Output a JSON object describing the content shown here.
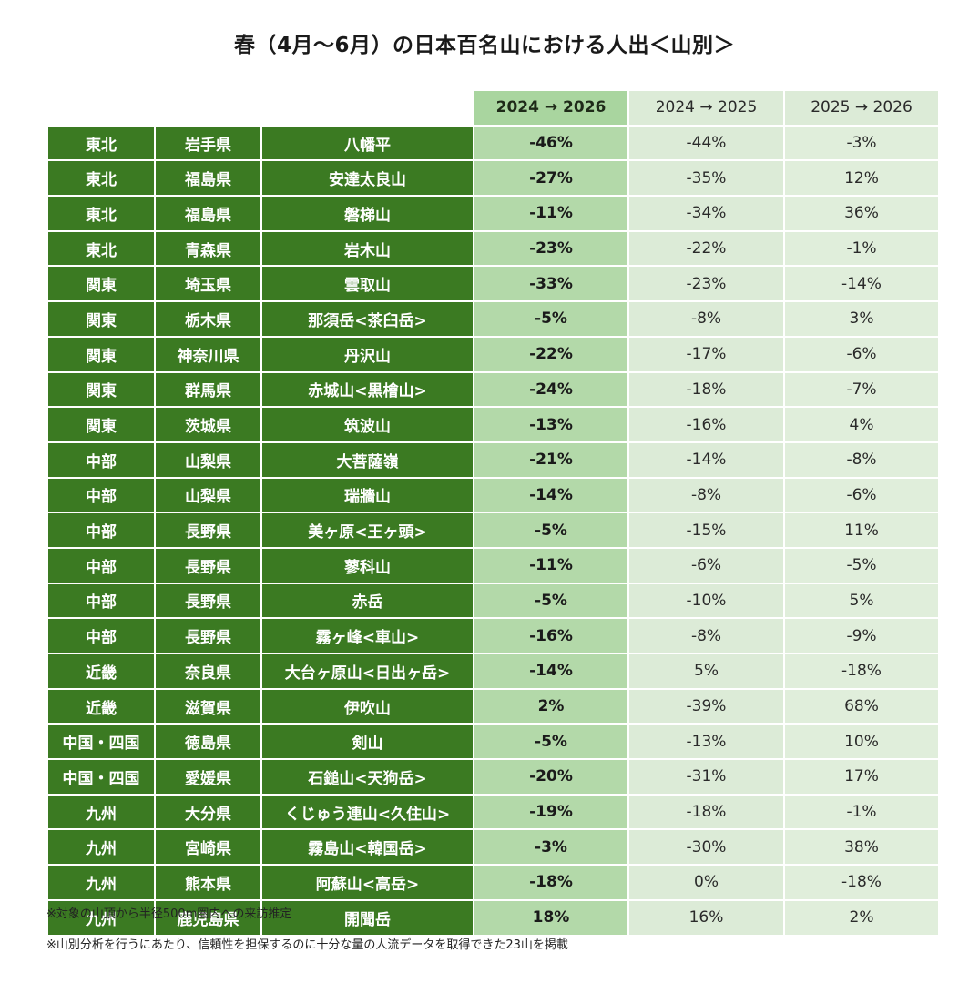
{
  "title": "春（4月〜6月）の日本百名山における人出＜山別＞",
  "headers": {
    "col_main": "2024 → 2026",
    "col_a": "2024 → 2025",
    "col_b": "2025 → 2026"
  },
  "rows": [
    {
      "region": "東北",
      "pref": "岩手県",
      "mountain": "八幡平",
      "v1": "-46%",
      "v2": "-44%",
      "v3": "-3%"
    },
    {
      "region": "東北",
      "pref": "福島県",
      "mountain": "安達太良山",
      "v1": "-27%",
      "v2": "-35%",
      "v3": "12%"
    },
    {
      "region": "東北",
      "pref": "福島県",
      "mountain": "磐梯山",
      "v1": "-11%",
      "v2": "-34%",
      "v3": "36%"
    },
    {
      "region": "東北",
      "pref": "青森県",
      "mountain": "岩木山",
      "v1": "-23%",
      "v2": "-22%",
      "v3": "-1%"
    },
    {
      "region": "関東",
      "pref": "埼玉県",
      "mountain": "雲取山",
      "v1": "-33%",
      "v2": "-23%",
      "v3": "-14%"
    },
    {
      "region": "関東",
      "pref": "栃木県",
      "mountain": "那須岳<茶臼岳>",
      "v1": "-5%",
      "v2": "-8%",
      "v3": "3%"
    },
    {
      "region": "関東",
      "pref": "神奈川県",
      "mountain": "丹沢山",
      "v1": "-22%",
      "v2": "-17%",
      "v3": "-6%"
    },
    {
      "region": "関東",
      "pref": "群馬県",
      "mountain": "赤城山<黒檜山>",
      "v1": "-24%",
      "v2": "-18%",
      "v3": "-7%"
    },
    {
      "region": "関東",
      "pref": "茨城県",
      "mountain": "筑波山",
      "v1": "-13%",
      "v2": "-16%",
      "v3": "4%"
    },
    {
      "region": "中部",
      "pref": "山梨県",
      "mountain": "大菩薩嶺",
      "v1": "-21%",
      "v2": "-14%",
      "v3": "-8%"
    },
    {
      "region": "中部",
      "pref": "山梨県",
      "mountain": "瑞牆山",
      "v1": "-14%",
      "v2": "-8%",
      "v3": "-6%"
    },
    {
      "region": "中部",
      "pref": "長野県",
      "mountain": "美ヶ原<王ヶ頭>",
      "v1": "-5%",
      "v2": "-15%",
      "v3": "11%"
    },
    {
      "region": "中部",
      "pref": "長野県",
      "mountain": "蓼科山",
      "v1": "-11%",
      "v2": "-6%",
      "v3": "-5%"
    },
    {
      "region": "中部",
      "pref": "長野県",
      "mountain": "赤岳",
      "v1": "-5%",
      "v2": "-10%",
      "v3": "5%"
    },
    {
      "region": "中部",
      "pref": "長野県",
      "mountain": "霧ヶ峰<車山>",
      "v1": "-16%",
      "v2": "-8%",
      "v3": "-9%"
    },
    {
      "region": "近畿",
      "pref": "奈良県",
      "mountain": "大台ヶ原山<日出ヶ岳>",
      "v1": "-14%",
      "v2": "5%",
      "v3": "-18%"
    },
    {
      "region": "近畿",
      "pref": "滋賀県",
      "mountain": "伊吹山",
      "v1": "2%",
      "v2": "-39%",
      "v3": "68%"
    },
    {
      "region": "中国・四国",
      "pref": "徳島県",
      "mountain": "剣山",
      "v1": "-5%",
      "v2": "-13%",
      "v3": "10%"
    },
    {
      "region": "中国・四国",
      "pref": "愛媛県",
      "mountain": "石鎚山<天狗岳>",
      "v1": "-20%",
      "v2": "-31%",
      "v3": "17%"
    },
    {
      "region": "九州",
      "pref": "大分県",
      "mountain": "くじゅう連山<久住山>",
      "v1": "-19%",
      "v2": "-18%",
      "v3": "-1%"
    },
    {
      "region": "九州",
      "pref": "宮崎県",
      "mountain": "霧島山<韓国岳>",
      "v1": "-3%",
      "v2": "-30%",
      "v3": "38%"
    },
    {
      "region": "九州",
      "pref": "熊本県",
      "mountain": "阿蘇山<高岳>",
      "v1": "-18%",
      "v2": "0%",
      "v3": "-18%"
    },
    {
      "region": "九州",
      "pref": "鹿児島県",
      "mountain": "開聞岳",
      "v1": "18%",
      "v2": "16%",
      "v3": "2%"
    }
  ],
  "notes": [
    "※対象の山頂から半径500m圏内への来訪推定",
    "※山別分析を行うにあたり、信頼性を担保するのに十分な量の人流データを取得できた23山を掲載"
  ],
  "colors": {
    "dark_green": "#3b7a22",
    "main_col": "#b3d9a9",
    "sub_col": "#dcebd7"
  }
}
